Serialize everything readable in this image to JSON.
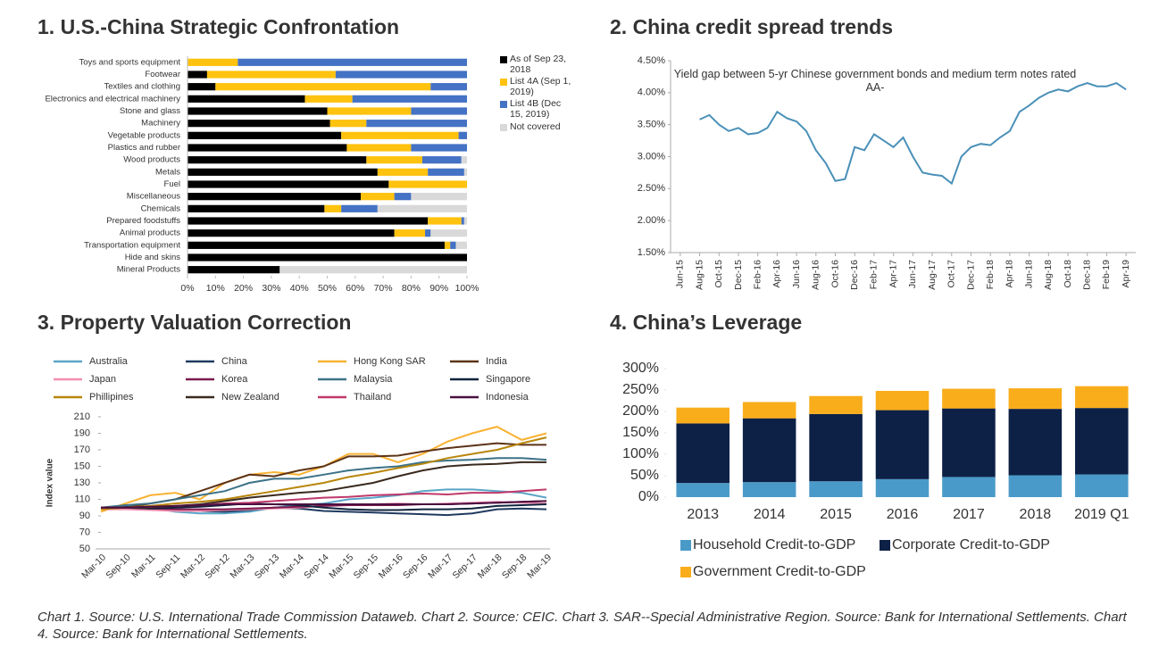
{
  "chart_data": [
    {
      "type": "bar",
      "orientation": "horizontal",
      "stacked": true,
      "title": "1. U.S.-China Strategic Confrontation",
      "categories": [
        "Toys and sports equipment",
        "Footwear",
        "Textiles and clothing",
        "Electronics and electrical machinery",
        "Stone and glass",
        "Machinery",
        "Vegetable products",
        "Plastics and rubber",
        "Wood products",
        "Metals",
        "Fuel",
        "Miscellaneous",
        "Chemicals",
        "Prepared foodstuffs",
        "Animal products",
        "Transportation equipment",
        "Hide and skins",
        "Mineral Products"
      ],
      "series": [
        {
          "name": "As of Sep 23, 2018",
          "color": "#000000",
          "values": [
            0,
            7,
            10,
            42,
            50,
            51,
            55,
            57,
            64,
            68,
            72,
            62,
            49,
            86,
            74,
            92,
            100,
            33
          ]
        },
        {
          "name": "List 4A (Sep 1, 2019)",
          "color": "#ffc20e",
          "values": [
            18,
            46,
            77,
            17,
            30,
            13,
            42,
            23,
            20,
            18,
            28,
            12,
            6,
            12,
            11,
            2,
            0,
            0
          ]
        },
        {
          "name": "List 4B (Dec 15, 2019)",
          "color": "#4472c4",
          "values": [
            82,
            47,
            13,
            41,
            20,
            36,
            3,
            20,
            14,
            13,
            0,
            6,
            13,
            1,
            2,
            2,
            0,
            0
          ]
        },
        {
          "name": "Not covered",
          "color": "#d9d9d9",
          "values": [
            0,
            0,
            0,
            0,
            0,
            0,
            0,
            0,
            2,
            1,
            0,
            20,
            32,
            1,
            13,
            4,
            0,
            67
          ]
        }
      ],
      "xlim": [
        0,
        100
      ],
      "xticks": [
        {
          "value": 0,
          "label": "0%"
        },
        {
          "value": 10,
          "label": "10%"
        },
        {
          "value": 20,
          "label": "20%"
        },
        {
          "value": 30,
          "label": "30%"
        },
        {
          "value": 40,
          "label": "40%"
        },
        {
          "value": 50,
          "label": "50%"
        },
        {
          "value": 60,
          "label": "60%"
        },
        {
          "value": 70,
          "label": "70%"
        },
        {
          "value": 80,
          "label": "80%"
        },
        {
          "value": 90,
          "label": "90%"
        },
        {
          "value": 100,
          "label": "100%"
        }
      ]
    },
    {
      "type": "line",
      "title": "2. China credit spread trends",
      "annotation": "Yield gap between 5-yr Chinese government bonds and medium term notes rated AA-",
      "color": "#4a90b8",
      "x": [
        "2015-08",
        "2015-09",
        "2015-10",
        "2015-11",
        "2015-12",
        "2016-01",
        "2016-02",
        "2016-03",
        "2016-04",
        "2016-05",
        "2016-06",
        "2016-07",
        "2016-08",
        "2016-09",
        "2016-10",
        "2016-11",
        "2016-12",
        "2017-01",
        "2017-02",
        "2017-03",
        "2017-04",
        "2017-05",
        "2017-06",
        "2017-07",
        "2017-08",
        "2017-09",
        "2017-10",
        "2017-11",
        "2017-12",
        "2018-01",
        "2018-02",
        "2018-03",
        "2018-04",
        "2018-05",
        "2018-06",
        "2018-07",
        "2018-08",
        "2018-09",
        "2018-10",
        "2018-11",
        "2018-12",
        "2019-01",
        "2019-02",
        "2019-03",
        "2019-04"
      ],
      "values": [
        3.58,
        3.65,
        3.5,
        3.4,
        3.45,
        3.35,
        3.37,
        3.45,
        3.7,
        3.6,
        3.55,
        3.4,
        3.1,
        2.9,
        2.62,
        2.65,
        3.15,
        3.1,
        3.35,
        3.25,
        3.15,
        3.3,
        3.0,
        2.75,
        2.72,
        2.7,
        2.58,
        3.0,
        3.15,
        3.2,
        3.18,
        3.3,
        3.4,
        3.7,
        3.8,
        3.92,
        4.0,
        4.05,
        4.02,
        4.1,
        4.15,
        4.1,
        4.1,
        4.15,
        4.05
      ],
      "xlim": [
        "2015-05",
        "2019-05"
      ],
      "xticks": [
        {
          "value": "2015-06",
          "label": "Jun-15"
        },
        {
          "value": "2015-08",
          "label": "Aug-15"
        },
        {
          "value": "2015-10",
          "label": "Oct-15"
        },
        {
          "value": "2015-12",
          "label": "Dec-15"
        },
        {
          "value": "2016-02",
          "label": "Feb-16"
        },
        {
          "value": "2016-04",
          "label": "Apr-16"
        },
        {
          "value": "2016-06",
          "label": "Jun-16"
        },
        {
          "value": "2016-08",
          "label": "Aug-16"
        },
        {
          "value": "2016-10",
          "label": "Oct-16"
        },
        {
          "value": "2016-12",
          "label": "Dec-16"
        },
        {
          "value": "2017-02",
          "label": "Feb-17"
        },
        {
          "value": "2017-04",
          "label": "Apr-17"
        },
        {
          "value": "2017-06",
          "label": "Jun-17"
        },
        {
          "value": "2017-08",
          "label": "Aug-17"
        },
        {
          "value": "2017-10",
          "label": "Oct-17"
        },
        {
          "value": "2017-12",
          "label": "Dec-17"
        },
        {
          "value": "2018-02",
          "label": "Feb-18"
        },
        {
          "value": "2018-04",
          "label": "Apr-18"
        },
        {
          "value": "2018-06",
          "label": "Jun-18"
        },
        {
          "value": "2018-08",
          "label": "Aug-18"
        },
        {
          "value": "2018-10",
          "label": "Oct-18"
        },
        {
          "value": "2018-12",
          "label": "Dec-18"
        },
        {
          "value": "2019-02",
          "label": "Feb-19"
        },
        {
          "value": "2019-04",
          "label": "Apr-19"
        }
      ],
      "ylim": [
        1.5,
        4.5
      ],
      "yticks": [
        {
          "value": 1.5,
          "label": "1.50%"
        },
        {
          "value": 2,
          "label": "2.00%"
        },
        {
          "value": 2.5,
          "label": "2.50%"
        },
        {
          "value": 3,
          "label": "3.00%"
        },
        {
          "value": 3.5,
          "label": "3.50%"
        },
        {
          "value": 4,
          "label": "4.00%"
        },
        {
          "value": 4.5,
          "label": "4.50%"
        }
      ]
    },
    {
      "type": "line",
      "title": "3. Property Valuation Correction",
      "ylabel": "Index value",
      "x": [
        "Mar-10",
        "Sep-10",
        "Mar-11",
        "Sep-11",
        "Mar-12",
        "Sep-12",
        "Mar-13",
        "Sep-13",
        "Mar-14",
        "Sep-14",
        "Mar-15",
        "Sep-15",
        "Mar-16",
        "Sep-16",
        "Mar-17",
        "Sep-17",
        "Mar-18",
        "Sep-18",
        "Mar-19"
      ],
      "series": [
        {
          "name": "Australia",
          "color": "#5aa5c8",
          "values": [
            100,
            102,
            100,
            95,
            93,
            93,
            95,
            100,
            103,
            105,
            110,
            112,
            115,
            120,
            122,
            122,
            120,
            118,
            112
          ]
        },
        {
          "name": "China",
          "color": "#1f3a60",
          "values": [
            100,
            101,
            99,
            97,
            96,
            95,
            97,
            100,
            99,
            96,
            95,
            94,
            93,
            92,
            91,
            93,
            98,
            99,
            98
          ]
        },
        {
          "name": "Hong Kong SAR",
          "color": "#f9b233",
          "values": [
            95,
            105,
            115,
            118,
            110,
            130,
            140,
            143,
            140,
            150,
            165,
            165,
            155,
            165,
            180,
            190,
            198,
            182,
            190
          ]
        },
        {
          "name": "India",
          "color": "#5c3317",
          "values": [
            100,
            100,
            105,
            110,
            120,
            130,
            140,
            138,
            145,
            150,
            162,
            162,
            163,
            168,
            172,
            175,
            178,
            176,
            176
          ]
        },
        {
          "name": "Japan",
          "color": "#f28fb0",
          "values": [
            98,
            98,
            97,
            96,
            96,
            97,
            98,
            99,
            100,
            102,
            103,
            104,
            105,
            104,
            105,
            106,
            107,
            106,
            105
          ]
        },
        {
          "name": "Korea",
          "color": "#7b1b4e",
          "values": [
            100,
            100,
            99,
            98,
            98,
            98,
            99,
            100,
            101,
            102,
            103,
            103,
            103,
            104,
            104,
            105,
            106,
            107,
            108
          ]
        },
        {
          "name": "Malaysia",
          "color": "#3c7287",
          "values": [
            100,
            103,
            105,
            110,
            115,
            120,
            130,
            135,
            135,
            140,
            145,
            148,
            150,
            155,
            157,
            158,
            160,
            160,
            158
          ]
        },
        {
          "name": "Singapore",
          "color": "#10243e",
          "values": [
            100,
            100,
            99,
            100,
            101,
            103,
            105,
            104,
            103,
            100,
            98,
            97,
            97,
            98,
            98,
            99,
            102,
            103,
            104
          ]
        },
        {
          "name": "Phillipines",
          "color": "#b8860b",
          "values": [
            98,
            100,
            102,
            105,
            107,
            110,
            115,
            120,
            125,
            130,
            137,
            142,
            148,
            153,
            160,
            165,
            170,
            178,
            185
          ]
        },
        {
          "name": "New Zealand",
          "color": "#3a2a1e",
          "values": [
            100,
            100,
            100,
            102,
            104,
            108,
            112,
            115,
            118,
            120,
            125,
            130,
            138,
            145,
            150,
            152,
            153,
            155,
            155
          ]
        },
        {
          "name": "Thailand",
          "color": "#c0396b",
          "values": [
            100,
            100,
            101,
            102,
            103,
            105,
            106,
            108,
            110,
            112,
            113,
            115,
            116,
            117,
            116,
            118,
            118,
            120,
            122
          ]
        },
        {
          "name": "Indonesia",
          "color": "#4a1040",
          "values": [
            100,
            100,
            101,
            102,
            103,
            104,
            104,
            104,
            104,
            104,
            104,
            104,
            104,
            104,
            104,
            105,
            106,
            107,
            108
          ]
        }
      ],
      "ylim": [
        50,
        210
      ],
      "yticks": [
        50,
        70,
        90,
        110,
        130,
        150,
        170,
        190,
        210
      ]
    },
    {
      "type": "bar",
      "orientation": "vertical",
      "stacked": true,
      "title": "4. China’s Leverage",
      "categories": [
        "2013",
        "2014",
        "2015",
        "2016",
        "2017",
        "2018",
        "2019 Q1"
      ],
      "series": [
        {
          "name": "Household Credit-to-GDP",
          "color": "#4a9ac9",
          "values": [
            33,
            35,
            37,
            42,
            47,
            51,
            53
          ]
        },
        {
          "name": "Corporate Credit-to-GDP",
          "color": "#0d2147",
          "values": [
            139,
            149,
            157,
            161,
            160,
            155,
            155
          ]
        },
        {
          "name": "Government Credit-to-GDP",
          "color": "#f9ad1b",
          "values": [
            37,
            38,
            42,
            45,
            46,
            48,
            51
          ]
        }
      ],
      "ylim": [
        0,
        300
      ],
      "yticks": [
        {
          "value": 0,
          "label": "0%"
        },
        {
          "value": 50,
          "label": "50%"
        },
        {
          "value": 100,
          "label": "100%"
        },
        {
          "value": 150,
          "label": "150%"
        },
        {
          "value": 200,
          "label": "200%"
        },
        {
          "value": 250,
          "label": "250%"
        },
        {
          "value": 300,
          "label": "300%"
        }
      ]
    }
  ],
  "caption": "Chart 1. Source: U.S. International Trade Commission Dataweb. Chart 2. Source: CEIC. Chart 3. SAR--Special Administrative Region. Source: Bank for International Settlements. Chart 4. Source: Bank for International Settlements."
}
